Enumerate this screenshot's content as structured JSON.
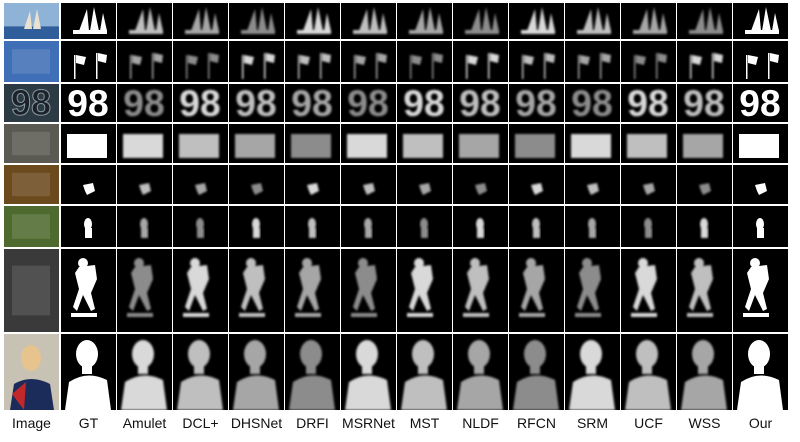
{
  "figure": {
    "column_labels": [
      "Image",
      "GT",
      "Amulet",
      "DCL+",
      "DHSNet",
      "DRFI",
      "MSRNet",
      "MST",
      "NLDF",
      "RFCN",
      "SRM",
      "UCF",
      "WSS",
      "Our"
    ],
    "rows": [
      "sailboat",
      "flags",
      "digits-98",
      "building",
      "leaf",
      "child",
      "skateboarder",
      "woman-portrait"
    ],
    "text_in_images": "98"
  }
}
